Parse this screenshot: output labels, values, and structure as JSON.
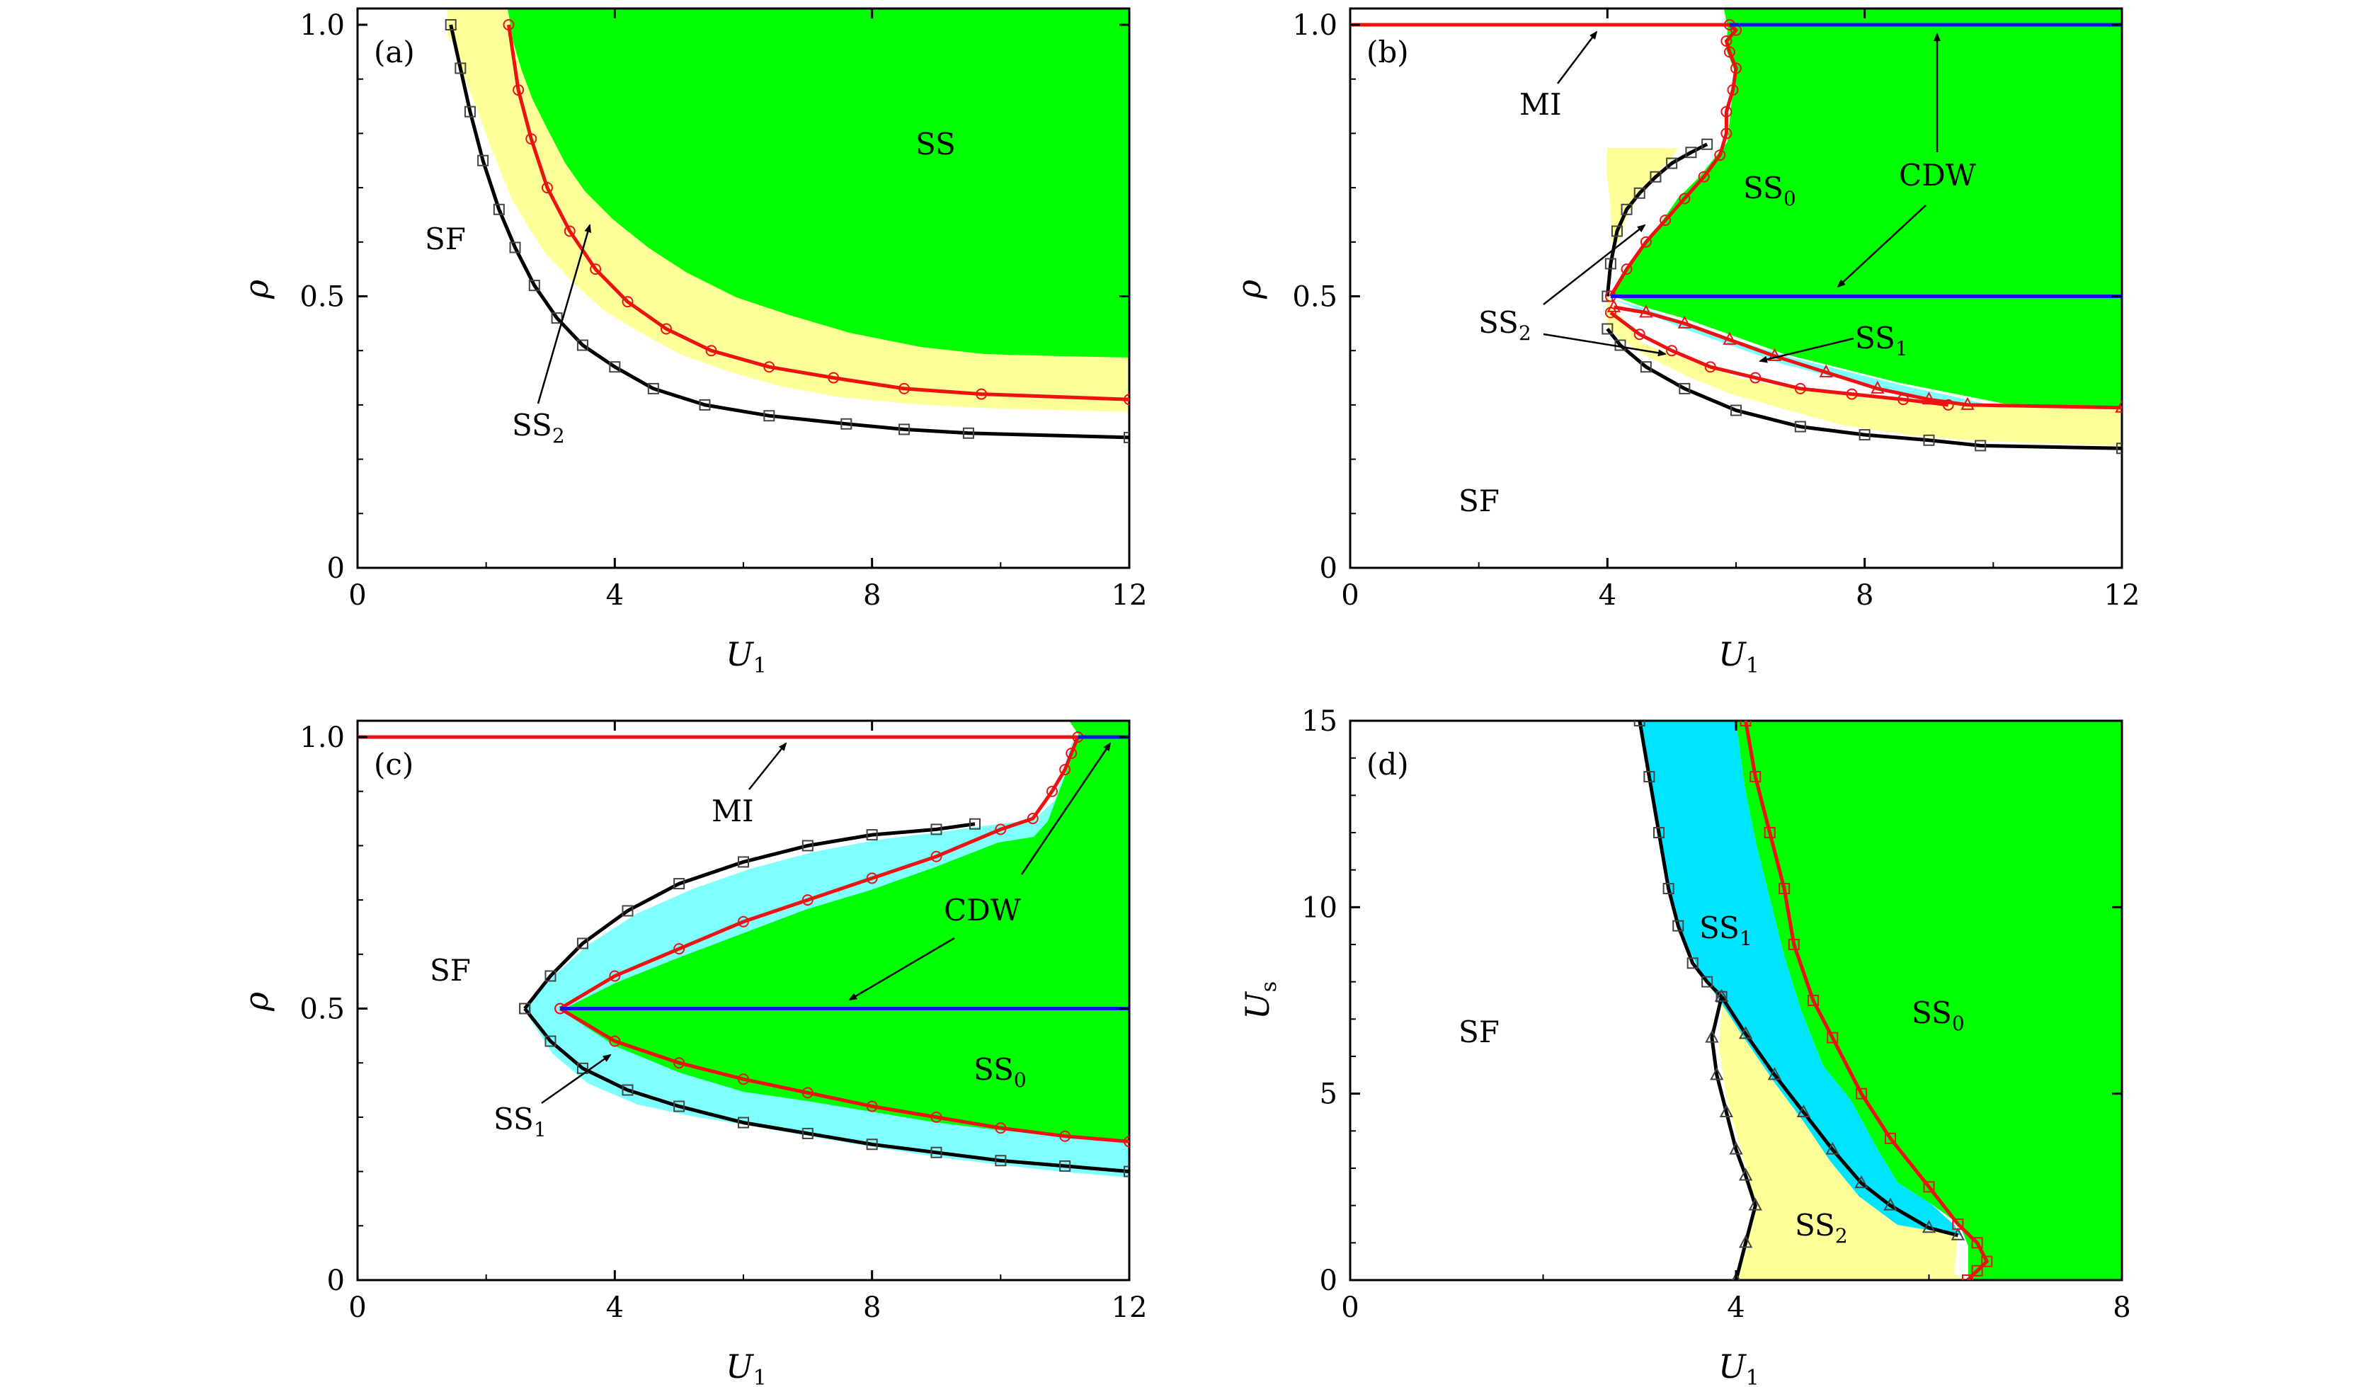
{
  "colors": {
    "SS": "#00ff00",
    "SS1": "#80ffff",
    "SS1_d": "#00e5ff",
    "SS2": "#ffff99",
    "line_black": "#000000",
    "line_red": "#ee1111",
    "line_blue": "#1111ee"
  },
  "chart_data": [
    {
      "type": "area",
      "panel_label": "(a)",
      "xlabel": "U",
      "xlabel_sub": "1",
      "ylabel": "ρ",
      "xlim": [
        0,
        12
      ],
      "ylim": [
        0,
        1.0
      ],
      "xticks": [
        "0",
        "4",
        "8",
        "12"
      ],
      "yticks": [
        "0",
        "0.5",
        "1.0"
      ],
      "series": [
        {
          "name": "SF/SS2 boundary",
          "style": "black-squares",
          "x": [
            1.45,
            1.6,
            1.75,
            1.95,
            2.2,
            2.45,
            2.75,
            3.1,
            3.5,
            4.0,
            4.6,
            5.4,
            6.4,
            7.6,
            8.5,
            9.5,
            12.0
          ],
          "y": [
            1.0,
            0.92,
            0.84,
            0.75,
            0.66,
            0.59,
            0.52,
            0.46,
            0.41,
            0.37,
            0.33,
            0.3,
            0.28,
            0.265,
            0.255,
            0.248,
            0.24
          ]
        },
        {
          "name": "SS2/SS boundary",
          "style": "red-circles",
          "x": [
            2.35,
            2.5,
            2.7,
            2.95,
            3.3,
            3.7,
            4.2,
            4.8,
            5.5,
            6.4,
            7.4,
            8.5,
            9.7,
            12.0
          ],
          "y": [
            1.0,
            0.88,
            0.79,
            0.7,
            0.62,
            0.55,
            0.49,
            0.44,
            0.4,
            0.37,
            0.35,
            0.33,
            0.32,
            0.31
          ]
        }
      ],
      "regions": [
        {
          "label": "SF",
          "sub": ""
        },
        {
          "label": "SS",
          "sub": ""
        },
        {
          "label": "SS",
          "sub": "2"
        }
      ]
    },
    {
      "type": "area",
      "panel_label": "(b)",
      "xlabel": "U",
      "xlabel_sub": "1",
      "ylabel": "ρ",
      "xlim": [
        0,
        12
      ],
      "ylim": [
        0,
        1.0
      ],
      "xticks": [
        "0",
        "4",
        "8",
        "12"
      ],
      "yticks": [
        "0",
        "0.5",
        "1.0"
      ],
      "series": [
        {
          "name": "SF boundary upper",
          "style": "black-squares",
          "x": [
            4.0,
            4.05,
            4.15,
            4.3,
            4.5,
            4.75,
            5.0,
            5.3,
            5.55
          ],
          "y": [
            0.5,
            0.56,
            0.62,
            0.66,
            0.69,
            0.72,
            0.745,
            0.765,
            0.78
          ]
        },
        {
          "name": "SF boundary lower",
          "style": "black-squares",
          "x": [
            4.0,
            4.2,
            4.6,
            5.2,
            6.0,
            7.0,
            8.0,
            9.0,
            9.8,
            12.0
          ],
          "y": [
            0.44,
            0.41,
            0.37,
            0.33,
            0.29,
            0.26,
            0.245,
            0.235,
            0.225,
            0.22
          ]
        },
        {
          "name": "SS2/SS0 upper",
          "style": "red-circles",
          "x": [
            4.05,
            4.3,
            4.6,
            4.9,
            5.2,
            5.5,
            5.75,
            5.85,
            5.85,
            5.95,
            6.0,
            5.9,
            5.85,
            6.0,
            5.9
          ],
          "y": [
            0.5,
            0.55,
            0.6,
            0.64,
            0.68,
            0.72,
            0.76,
            0.8,
            0.84,
            0.88,
            0.92,
            0.95,
            0.97,
            0.99,
            1.0
          ]
        },
        {
          "name": "SS2/SS1 lower",
          "style": "red-circles",
          "x": [
            4.05,
            4.5,
            5.0,
            5.6,
            6.3,
            7.0,
            7.8,
            8.6,
            9.3
          ],
          "y": [
            0.47,
            0.43,
            0.4,
            0.37,
            0.35,
            0.33,
            0.32,
            0.31,
            0.3
          ]
        },
        {
          "name": "SS1/SS0",
          "style": "red-triangles",
          "x": [
            4.1,
            4.6,
            5.2,
            5.9,
            6.6,
            7.4,
            8.2,
            9.0,
            9.6,
            12.0
          ],
          "y": [
            0.48,
            0.47,
            0.45,
            0.42,
            0.39,
            0.36,
            0.33,
            0.31,
            0.3,
            0.295
          ]
        },
        {
          "name": "CDW ρ=0.5",
          "style": "blue",
          "x": [
            4.05,
            12.0
          ],
          "y": [
            0.5,
            0.5
          ]
        },
        {
          "name": "CDW ρ=1",
          "style": "blue",
          "x": [
            5.9,
            12.0
          ],
          "y": [
            1.0,
            1.0
          ]
        },
        {
          "name": "MI",
          "style": "red",
          "x": [
            0,
            5.9
          ],
          "y": [
            1.0,
            1.0
          ]
        }
      ],
      "regions": [
        {
          "label": "SF",
          "sub": ""
        },
        {
          "label": "SS",
          "sub": "0"
        },
        {
          "label": "SS",
          "sub": "1"
        },
        {
          "label": "SS",
          "sub": "2"
        },
        {
          "label": "MI",
          "sub": ""
        },
        {
          "label": "CDW",
          "sub": ""
        }
      ]
    },
    {
      "type": "area",
      "panel_label": "(c)",
      "xlabel": "U",
      "xlabel_sub": "1",
      "ylabel": "ρ",
      "xlim": [
        0,
        12
      ],
      "ylim": [
        0,
        1.0
      ],
      "xticks": [
        "0",
        "4",
        "8",
        "12"
      ],
      "yticks": [
        "0",
        "0.5",
        "1.0"
      ],
      "series": [
        {
          "name": "SF/SS1 upper",
          "style": "black-squares",
          "x": [
            2.6,
            3.0,
            3.5,
            4.2,
            5.0,
            6.0,
            7.0,
            8.0,
            9.0,
            9.6
          ],
          "y": [
            0.5,
            0.56,
            0.62,
            0.68,
            0.73,
            0.77,
            0.8,
            0.82,
            0.83,
            0.84
          ]
        },
        {
          "name": "SF/SS1 lower",
          "style": "black-squares",
          "x": [
            2.6,
            3.0,
            3.5,
            4.2,
            5.0,
            6.0,
            7.0,
            8.0,
            9.0,
            10.0,
            11.0,
            12.0
          ],
          "y": [
            0.5,
            0.44,
            0.39,
            0.35,
            0.32,
            0.29,
            0.27,
            0.25,
            0.235,
            0.22,
            0.21,
            0.2
          ]
        },
        {
          "name": "SS1/SS0 upper",
          "style": "red-circles",
          "x": [
            3.15,
            4.0,
            5.0,
            6.0,
            7.0,
            8.0,
            9.0,
            10.0,
            10.5,
            10.8,
            11.0,
            11.1,
            11.2
          ],
          "y": [
            0.5,
            0.56,
            0.61,
            0.66,
            0.7,
            0.74,
            0.78,
            0.83,
            0.85,
            0.9,
            0.94,
            0.97,
            1.0
          ]
        },
        {
          "name": "SS1/SS0 lower",
          "style": "red-circles",
          "x": [
            3.15,
            4.0,
            5.0,
            6.0,
            7.0,
            8.0,
            9.0,
            10.0,
            11.0,
            12.0
          ],
          "y": [
            0.5,
            0.44,
            0.4,
            0.37,
            0.345,
            0.32,
            0.3,
            0.28,
            0.265,
            0.255
          ]
        },
        {
          "name": "CDW ρ=0.5",
          "style": "blue",
          "x": [
            3.15,
            12.0
          ],
          "y": [
            0.5,
            0.5
          ]
        },
        {
          "name": "CDW ρ=1",
          "style": "blue",
          "x": [
            11.2,
            12.0
          ],
          "y": [
            1.0,
            1.0
          ]
        },
        {
          "name": "MI",
          "style": "red",
          "x": [
            0,
            11.2
          ],
          "y": [
            1.0,
            1.0
          ]
        }
      ],
      "regions": [
        {
          "label": "SF",
          "sub": ""
        },
        {
          "label": "SS",
          "sub": "0"
        },
        {
          "label": "SS",
          "sub": "1"
        },
        {
          "label": "MI",
          "sub": ""
        },
        {
          "label": "CDW",
          "sub": ""
        }
      ]
    },
    {
      "type": "area",
      "panel_label": "(d)",
      "xlabel": "U",
      "xlabel_sub": "1",
      "ylabel": "U",
      "ylabel_sub": "s",
      "xlim": [
        0,
        8
      ],
      "ylim": [
        0,
        15
      ],
      "xticks": [
        "0",
        "4",
        "8"
      ],
      "yticks": [
        "0",
        "5",
        "10",
        "15"
      ],
      "series": [
        {
          "name": "SF boundary",
          "style": "black-squares",
          "x": [
            3.0,
            3.1,
            3.2,
            3.3,
            3.4,
            3.55,
            3.7,
            3.85
          ],
          "y": [
            15,
            13.5,
            12,
            10.5,
            9.5,
            8.5,
            8.0,
            7.6
          ]
        },
        {
          "name": "SF/SS2 boundary",
          "style": "black-triangles",
          "x": [
            3.85,
            3.75,
            3.8,
            3.9,
            4.0,
            4.1,
            4.2,
            4.1,
            4.0
          ],
          "y": [
            7.6,
            6.5,
            5.5,
            4.5,
            3.5,
            2.8,
            2.0,
            1.0,
            0.0
          ]
        },
        {
          "name": "SS2/SS1 boundary",
          "style": "black-triangles",
          "x": [
            3.85,
            4.1,
            4.4,
            4.7,
            5.0,
            5.3,
            5.6,
            6.0,
            6.3
          ],
          "y": [
            7.6,
            6.6,
            5.5,
            4.5,
            3.5,
            2.6,
            2.0,
            1.4,
            1.2
          ]
        },
        {
          "name": "SS1/SS0 boundary",
          "style": "red-squares",
          "x": [
            4.1,
            4.2,
            4.35,
            4.5,
            4.6,
            4.8,
            5.0,
            5.3,
            5.6,
            6.0,
            6.3,
            6.5,
            6.6,
            6.5,
            6.4
          ],
          "y": [
            15,
            13.5,
            12,
            10.5,
            9.0,
            7.5,
            6.5,
            5.0,
            3.8,
            2.5,
            1.5,
            1.0,
            0.5,
            0.25,
            0.0
          ]
        }
      ],
      "regions": [
        {
          "label": "SF",
          "sub": ""
        },
        {
          "label": "SS",
          "sub": "1"
        },
        {
          "label": "SS",
          "sub": "0"
        },
        {
          "label": "SS",
          "sub": "2"
        }
      ]
    }
  ]
}
